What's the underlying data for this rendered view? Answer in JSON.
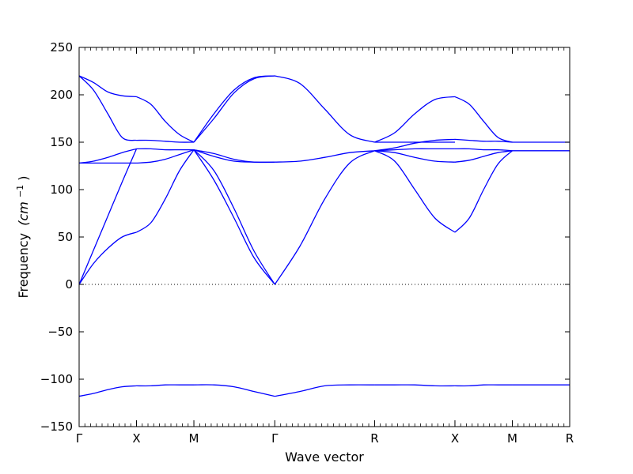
{
  "chart_data": {
    "type": "line",
    "title": "",
    "xlabel": "Wave vector",
    "ylabel": "Frequency",
    "ylabel_unit": "(cm",
    "ylabel_unit_exp": "−1",
    "ylabel_unit_close": ")",
    "ylim": [
      -150,
      250
    ],
    "xlim": [
      0,
      8.55
    ],
    "grid": false,
    "yticks": [
      {
        "value": -150,
        "label": "−150"
      },
      {
        "value": -100,
        "label": "−100"
      },
      {
        "value": -50,
        "label": "−50"
      },
      {
        "value": 0,
        "label": "0"
      },
      {
        "value": 50,
        "label": "50"
      },
      {
        "value": 100,
        "label": "100"
      },
      {
        "value": 150,
        "label": "150"
      },
      {
        "value": 200,
        "label": "200"
      },
      {
        "value": 250,
        "label": "250"
      }
    ],
    "xticks": [
      {
        "value": 0,
        "label": "Γ"
      },
      {
        "value": 1.0,
        "label": "X"
      },
      {
        "value": 2.0,
        "label": "M"
      },
      {
        "value": 3.41,
        "label": "Γ"
      },
      {
        "value": 5.15,
        "label": "R"
      },
      {
        "value": 6.55,
        "label": "X"
      },
      {
        "value": 7.55,
        "label": "M"
      },
      {
        "value": 8.55,
        "label": "R"
      }
    ],
    "zero_line": 0,
    "line_color": "#0000ff",
    "segments": [
      {
        "label": "Γ-X",
        "x": [
          0,
          0.25,
          0.5,
          0.75,
          1.0
        ],
        "series": [
          [
            0,
            22,
            38,
            50,
            55
          ],
          [
            0,
            36,
            72,
            108,
            143
          ],
          [
            128,
            130,
            134,
            139,
            143
          ],
          [
            128,
            128,
            128,
            128,
            128
          ],
          [
            220,
            213,
            203,
            199,
            198
          ],
          [
            220,
            205,
            180,
            155,
            152
          ],
          [
            -118,
            -115,
            -111,
            -108,
            -107
          ]
        ]
      },
      {
        "label": "X-M",
        "x": [
          1.0,
          1.25,
          1.5,
          1.75,
          2.0
        ],
        "series": [
          [
            55,
            65,
            90,
            120,
            142
          ],
          [
            143,
            143,
            142,
            142,
            142
          ],
          [
            128,
            129,
            132,
            137,
            142
          ],
          [
            152,
            152,
            151,
            150,
            150
          ],
          [
            198,
            190,
            172,
            158,
            150
          ],
          [
            -107,
            -107,
            -106,
            -106,
            -106
          ]
        ]
      },
      {
        "label": "M-Γ",
        "x": [
          2.0,
          2.35,
          2.7,
          3.05,
          3.41
        ],
        "series": [
          [
            142,
            120,
            80,
            35,
            0
          ],
          [
            142,
            110,
            70,
            28,
            0
          ],
          [
            142,
            135,
            130,
            129,
            129
          ],
          [
            142,
            138,
            132,
            129,
            129
          ],
          [
            150,
            180,
            205,
            218,
            220
          ],
          [
            150,
            175,
            202,
            217,
            220
          ],
          [
            -106,
            -106,
            -108,
            -113,
            -118
          ]
        ]
      },
      {
        "label": "Γ-R",
        "x": [
          3.41,
          3.845,
          4.28,
          4.715,
          5.15
        ],
        "series": [
          [
            0,
            40,
            90,
            128,
            141
          ],
          [
            129,
            130,
            134,
            139,
            141
          ],
          [
            220,
            212,
            185,
            158,
            150
          ],
          [
            -118,
            -113,
            -107,
            -106,
            -106
          ]
        ]
      },
      {
        "label": "R-X",
        "x": [
          5.15,
          5.5,
          5.85,
          6.2,
          6.55
        ],
        "series": [
          [
            141,
            130,
            100,
            70,
            55
          ],
          [
            141,
            139,
            134,
            130,
            129
          ],
          [
            141,
            142,
            143,
            143,
            143
          ],
          [
            141,
            144,
            149,
            152,
            153
          ],
          [
            150,
            150,
            150,
            150,
            150
          ],
          [
            150,
            160,
            180,
            195,
            198
          ],
          [
            -106,
            -106,
            -106,
            -107,
            -107
          ]
        ]
      },
      {
        "label": "X-M",
        "x": [
          6.55,
          6.8,
          7.05,
          7.3,
          7.55
        ],
        "series": [
          [
            55,
            70,
            100,
            127,
            141
          ],
          [
            129,
            131,
            135,
            139,
            141
          ],
          [
            143,
            143,
            142,
            142,
            141
          ],
          [
            153,
            152,
            151,
            151,
            150
          ],
          [
            198,
            190,
            172,
            155,
            150
          ],
          [
            -107,
            -107,
            -106,
            -106,
            -106
          ]
        ]
      },
      {
        "label": "M-R",
        "x": [
          7.55,
          8.0,
          8.55
        ],
        "series": [
          [
            141,
            141,
            141
          ],
          [
            150,
            150,
            150
          ],
          [
            -106,
            -106,
            -106
          ]
        ]
      }
    ]
  }
}
